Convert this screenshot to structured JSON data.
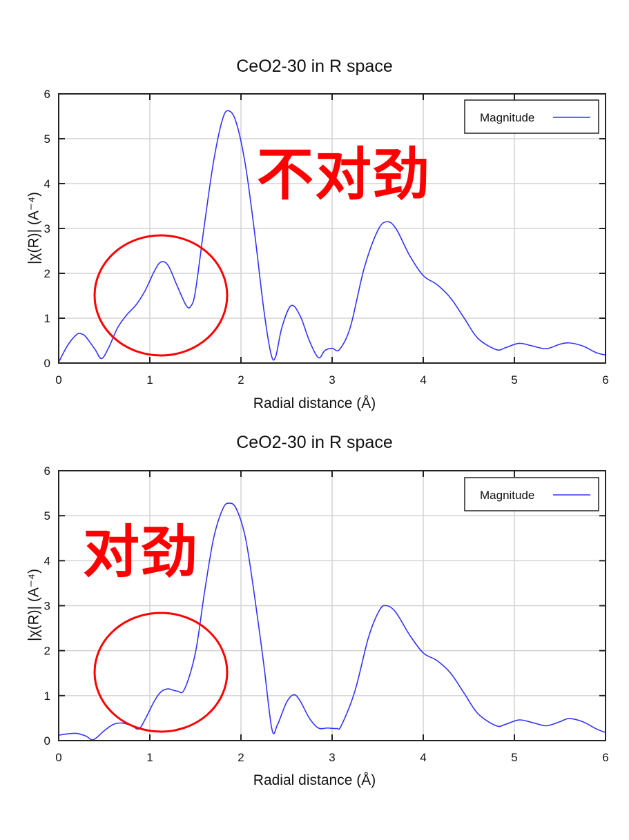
{
  "colors": {
    "curve": "#3333ff",
    "grid": "#d3d3d3",
    "frame": "#222222",
    "annotation": "#ff0000",
    "ellipse": "#ff0000"
  },
  "panels": [
    {
      "title": "CeO2-30 in R space",
      "xlabel": "Radial distance    (Å)",
      "ylabel": "|χ(R)|   (A⁻⁴)",
      "legend_label": "Magnitude",
      "annotation": "不对劲"
    },
    {
      "title": "CeO2-30 in R space",
      "xlabel": "Radial distance    (Å)",
      "ylabel": "|χ(R)|   (A⁻⁴)",
      "legend_label": "Magnitude",
      "annotation": "对劲"
    }
  ],
  "chart_data": [
    {
      "type": "line",
      "title": "CeO2-30 in R space",
      "xlabel": "Radial distance (Å)",
      "ylabel": "|χ(R)| (A⁻⁴)",
      "xlim": [
        0,
        6
      ],
      "ylim": [
        0,
        6
      ],
      "xticks": [
        0,
        1,
        2,
        3,
        4,
        5,
        6
      ],
      "yticks": [
        0,
        1,
        2,
        3,
        4,
        5,
        6
      ],
      "grid": true,
      "legend_position": "upper right",
      "annotation": "不对劲",
      "highlight_ellipse": {
        "x_center": 1.12,
        "y_center": 1.5,
        "note": "region ~0.4–1.85 Å circled"
      },
      "series": [
        {
          "name": "Magnitude",
          "x": [
            0,
            0.1,
            0.2,
            0.25,
            0.3,
            0.4,
            0.47,
            0.55,
            0.65,
            0.75,
            0.85,
            0.95,
            1.05,
            1.12,
            1.2,
            1.3,
            1.4,
            1.45,
            1.5,
            1.6,
            1.7,
            1.8,
            1.87,
            1.95,
            2.05,
            2.15,
            2.25,
            2.33,
            2.38,
            2.45,
            2.55,
            2.65,
            2.75,
            2.85,
            2.92,
            3.0,
            3.08,
            3.2,
            3.35,
            3.5,
            3.6,
            3.7,
            3.85,
            4.0,
            4.15,
            4.3,
            4.45,
            4.6,
            4.8,
            4.9,
            5.05,
            5.2,
            5.35,
            5.5,
            5.6,
            5.75,
            5.9,
            6.0
          ],
          "values": [
            0.02,
            0.4,
            0.64,
            0.65,
            0.58,
            0.3,
            0.1,
            0.35,
            0.8,
            1.08,
            1.3,
            1.62,
            2.05,
            2.25,
            2.18,
            1.72,
            1.28,
            1.27,
            1.6,
            3.1,
            4.5,
            5.45,
            5.62,
            5.35,
            4.4,
            2.9,
            1.2,
            0.2,
            0.14,
            0.8,
            1.28,
            1.05,
            0.5,
            0.12,
            0.28,
            0.33,
            0.3,
            0.8,
            2.1,
            2.95,
            3.15,
            3.0,
            2.4,
            1.95,
            1.75,
            1.45,
            1.0,
            0.55,
            0.3,
            0.34,
            0.44,
            0.38,
            0.32,
            0.42,
            0.45,
            0.38,
            0.23,
            0.18
          ]
        }
      ]
    },
    {
      "type": "line",
      "title": "CeO2-30 in R space",
      "xlabel": "Radial distance (Å)",
      "ylabel": "|χ(R)| (A⁻⁴)",
      "xlim": [
        0,
        6
      ],
      "ylim": [
        0,
        6
      ],
      "xticks": [
        0,
        1,
        2,
        3,
        4,
        5,
        6
      ],
      "yticks": [
        0,
        1,
        2,
        3,
        4,
        5,
        6
      ],
      "grid": true,
      "legend_position": "upper right",
      "annotation": "对劲",
      "highlight_ellipse": {
        "x_center": 1.12,
        "y_center": 1.5,
        "note": "region ~0.4–1.85 Å circled"
      },
      "series": [
        {
          "name": "Magnitude",
          "x": [
            0,
            0.1,
            0.2,
            0.3,
            0.38,
            0.5,
            0.6,
            0.7,
            0.8,
            0.88,
            0.95,
            1.05,
            1.12,
            1.2,
            1.3,
            1.38,
            1.5,
            1.6,
            1.7,
            1.8,
            1.87,
            1.95,
            2.05,
            2.15,
            2.25,
            2.34,
            2.4,
            2.5,
            2.58,
            2.65,
            2.75,
            2.85,
            2.95,
            3.05,
            3.1,
            3.25,
            3.4,
            3.52,
            3.6,
            3.7,
            3.85,
            4.0,
            4.15,
            4.3,
            4.45,
            4.6,
            4.8,
            4.9,
            5.05,
            5.2,
            5.35,
            5.5,
            5.6,
            5.75,
            5.9,
            6.0
          ],
          "values": [
            0.12,
            0.15,
            0.16,
            0.1,
            0.02,
            0.22,
            0.36,
            0.39,
            0.33,
            0.26,
            0.48,
            0.88,
            1.08,
            1.15,
            1.1,
            1.14,
            1.95,
            3.3,
            4.5,
            5.15,
            5.28,
            5.15,
            4.5,
            3.2,
            1.7,
            0.25,
            0.35,
            0.85,
            1.02,
            0.88,
            0.5,
            0.28,
            0.28,
            0.27,
            0.33,
            1.1,
            2.3,
            2.9,
            3.0,
            2.85,
            2.35,
            1.95,
            1.78,
            1.5,
            1.05,
            0.6,
            0.33,
            0.36,
            0.46,
            0.4,
            0.33,
            0.42,
            0.49,
            0.42,
            0.26,
            0.18
          ]
        }
      ]
    }
  ]
}
